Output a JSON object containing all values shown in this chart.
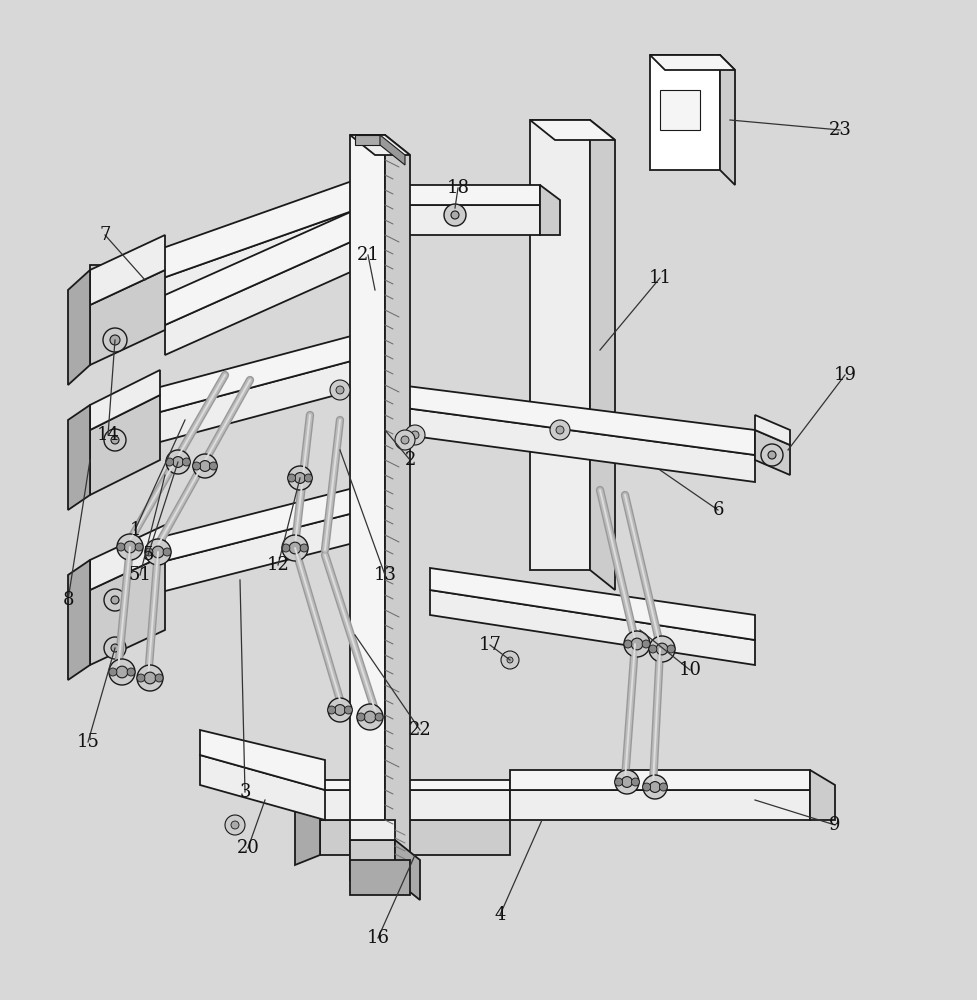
{
  "bg": "#d8d8d8",
  "lc": "#1a1a1a",
  "fc_white": "#ffffff",
  "fc_light": "#eeeeee",
  "fc_mid": "#cccccc",
  "fc_dark": "#aaaaaa",
  "fc_very_light": "#f5f5f5",
  "figsize": [
    9.77,
    10.0
  ],
  "dpi": 100
}
